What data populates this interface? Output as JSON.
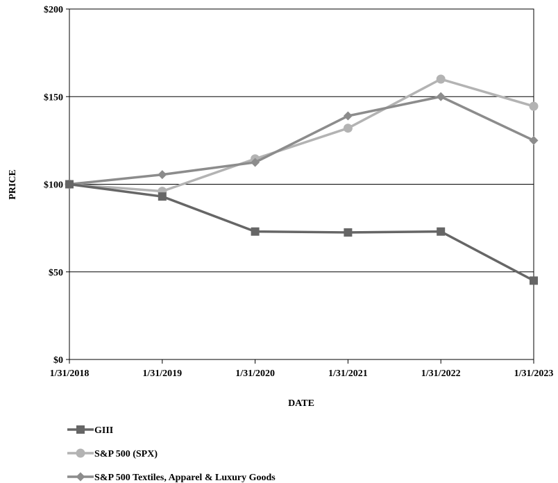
{
  "chart_data": {
    "type": "line",
    "title": "",
    "xlabel": "DATE",
    "ylabel": "PRICE",
    "categories": [
      "1/31/2018",
      "1/31/2019",
      "1/31/2020",
      "1/31/2021",
      "1/31/2022",
      "1/31/2023"
    ],
    "y_ticks": [
      "$0",
      "$50",
      "$100",
      "$150",
      "$200"
    ],
    "y_tick_values": [
      0,
      50,
      100,
      150,
      200
    ],
    "ylim": [
      0,
      200
    ],
    "grid": "horizontal",
    "legend_position": "bottom-left",
    "series": [
      {
        "name": "GIII",
        "marker": "square",
        "color": "#666666",
        "values": [
          100,
          93,
          73,
          72.5,
          73,
          45
        ]
      },
      {
        "name": "S&P 500 (SPX)",
        "marker": "circle",
        "color": "#b3b3b3",
        "values": [
          100,
          96,
          114.5,
          132,
          160,
          144.5
        ]
      },
      {
        "name": "S&P 500 Textiles, Apparel & Luxury Goods",
        "marker": "diamond",
        "color": "#8c8c8c",
        "values": [
          100,
          105.5,
          112.5,
          139,
          150,
          125
        ]
      }
    ]
  }
}
